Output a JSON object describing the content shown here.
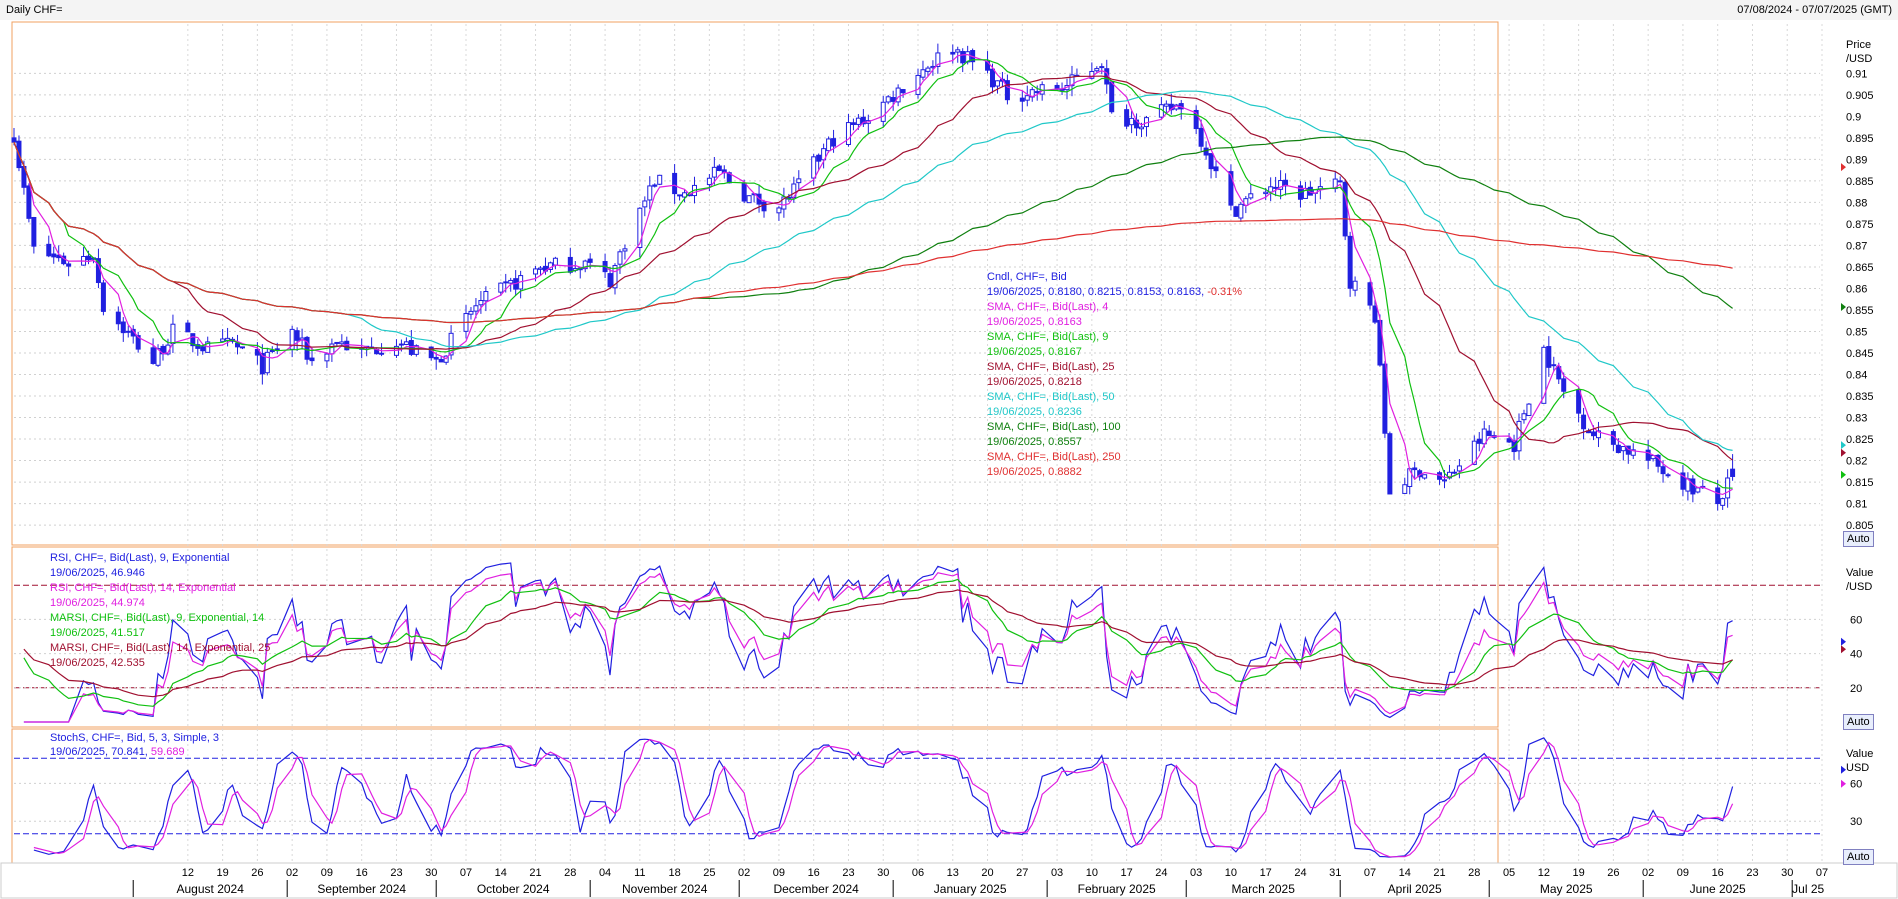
{
  "window": {
    "title": "Daily CHF=",
    "date_range": "07/08/2024 - 07/07/2025 (GMT)"
  },
  "colors": {
    "candle": "#2020e0",
    "sma4": "#e020e0",
    "sma9": "#10c010",
    "sma25": "#a01030",
    "sma50": "#20c8c8",
    "sma100": "#108010",
    "sma250": "#e03030",
    "rsi9": "#2020e0",
    "rsi14": "#e020e0",
    "marsi9": "#10c010",
    "marsi14": "#a01030",
    "stoch_k": "#2020e0",
    "stoch_d": "#e020e0"
  },
  "price_panel": {
    "axis_title_1": "Price",
    "axis_title_2": "/USD",
    "auto_button": "Auto",
    "ticks": [
      "0.91",
      "0.905",
      "0.9",
      "0.895",
      "0.89",
      "0.885",
      "0.88",
      "0.875",
      "0.87",
      "0.865",
      "0.86",
      "0.855",
      "0.85",
      "0.845",
      "0.84",
      "0.835",
      "0.83",
      "0.825",
      "0.82",
      "0.815",
      "0.81",
      "0.805"
    ],
    "legend": [
      {
        "text": "Cndl, CHF=, Bid",
        "color": "#2020e0"
      },
      {
        "text": "19/06/2025, 0.8180, 0.8215, 0.8153, 0.8163,",
        "suffix": " -0.31%",
        "color": "#2020e0",
        "suffix_color": "#e03030"
      },
      {
        "text": "SMA, CHF=, Bid(Last),  4",
        "color": "#e020e0"
      },
      {
        "text": "19/06/2025, 0.8163",
        "color": "#e020e0"
      },
      {
        "text": "SMA, CHF=, Bid(Last),  9",
        "color": "#10c010"
      },
      {
        "text": "19/06/2025, 0.8167",
        "color": "#10c010"
      },
      {
        "text": "SMA, CHF=, Bid(Last),  25",
        "color": "#a01030"
      },
      {
        "text": "19/06/2025, 0.8218",
        "color": "#a01030"
      },
      {
        "text": "SMA, CHF=, Bid(Last),  50",
        "color": "#20c8c8"
      },
      {
        "text": "19/06/2025, 0.8236",
        "color": "#20c8c8"
      },
      {
        "text": "SMA, CHF=, Bid(Last),  100",
        "color": "#108010"
      },
      {
        "text": "19/06/2025, 0.8557",
        "color": "#108010"
      },
      {
        "text": "SMA, CHF=, Bid(Last),  250",
        "color": "#e03030"
      },
      {
        "text": "19/06/2025, 0.8882",
        "color": "#e03030"
      }
    ]
  },
  "rsi_panel": {
    "axis_title_1": "Value",
    "axis_title_2": "/USD",
    "auto_button": "Auto",
    "ticks": [
      "60",
      "40",
      "20"
    ],
    "legend": [
      {
        "text": "RSI, CHF=, Bid(Last),  9, Exponential",
        "color": "#2020e0"
      },
      {
        "text": "19/06/2025, 46.946",
        "color": "#2020e0"
      },
      {
        "text": "RSI, CHF=, Bid(Last),  14, Exponential",
        "color": "#e020e0"
      },
      {
        "text": "19/06/2025, 44.974",
        "color": "#e020e0"
      },
      {
        "text": "MARSI, CHF=, Bid(Last),  9, Exponential, 14",
        "color": "#10c010"
      },
      {
        "text": "19/06/2025, 41.517",
        "color": "#10c010"
      },
      {
        "text": "MARSI, CHF=, Bid(Last),  14, Exponential, 25",
        "color": "#a01030"
      },
      {
        "text": "19/06/2025, 42.535",
        "color": "#a01030"
      }
    ]
  },
  "stoch_panel": {
    "axis_title_1": "Value",
    "axis_title_2": "USD",
    "auto_button": "Auto",
    "ticks": [
      "60",
      "30"
    ],
    "legend_line1": "StochS, CHF=, Bid,  5, 3, Simple, 3",
    "legend_date": "19/06/2025, 70.841,",
    "legend_v2": " 59.689"
  },
  "x_axis": {
    "day_ticks": [
      "12",
      "19",
      "26",
      "02",
      "09",
      "16",
      "23",
      "30",
      "07",
      "14",
      "21",
      "28",
      "04",
      "11",
      "18",
      "25",
      "02",
      "09",
      "16",
      "23",
      "30",
      "06",
      "13",
      "20",
      "27",
      "03",
      "10",
      "17",
      "24",
      "03",
      "10",
      "17",
      "24",
      "31",
      "07",
      "14",
      "21",
      "28",
      "05",
      "12",
      "19",
      "26",
      "02",
      "09",
      "16",
      "23",
      "30",
      "07"
    ],
    "months": [
      "August 2024",
      "September 2024",
      "October 2024",
      "November 2024",
      "December 2024",
      "January 2025",
      "February 2025",
      "March 2025",
      "April 2025",
      "May 2025",
      "June 2025",
      "Jul 25"
    ]
  },
  "chart_data": {
    "type": "candlestick",
    "instrument": "CHF=",
    "interval": "Daily",
    "price_ylim": [
      0.802,
      0.921
    ],
    "anchors_price_close": [
      [
        "2024-07-08",
        0.896
      ],
      [
        "2024-07-12",
        0.869
      ],
      [
        "2024-07-19",
        0.866
      ],
      [
        "2024-07-24",
        0.868
      ],
      [
        "2024-07-26",
        0.856
      ],
      [
        "2024-08-05",
        0.843
      ],
      [
        "2024-08-09",
        0.85
      ],
      [
        "2024-08-16",
        0.846
      ],
      [
        "2024-08-21",
        0.847
      ],
      [
        "2024-08-27",
        0.842
      ],
      [
        "2024-09-02",
        0.85
      ],
      [
        "2024-09-06",
        0.843
      ],
      [
        "2024-09-11",
        0.848
      ],
      [
        "2024-09-16",
        0.845
      ],
      [
        "2024-09-23",
        0.848
      ],
      [
        "2024-09-27",
        0.845
      ],
      [
        "2024-10-01",
        0.843
      ],
      [
        "2024-10-09",
        0.856
      ],
      [
        "2024-10-15",
        0.86
      ],
      [
        "2024-10-22",
        0.865
      ],
      [
        "2024-10-31",
        0.866
      ],
      [
        "2024-11-05",
        0.862
      ],
      [
        "2024-11-08",
        0.871
      ],
      [
        "2024-11-14",
        0.885
      ],
      [
        "2024-11-20",
        0.882
      ],
      [
        "2024-11-27",
        0.887
      ],
      [
        "2024-12-03",
        0.881
      ],
      [
        "2024-12-09",
        0.879
      ],
      [
        "2024-12-13",
        0.884
      ],
      [
        "2024-12-20",
        0.895
      ],
      [
        "2024-12-27",
        0.9
      ],
      [
        "2025-01-03",
        0.907
      ],
      [
        "2025-01-08",
        0.912
      ],
      [
        "2025-01-13",
        0.916
      ],
      [
        "2025-01-20",
        0.91
      ],
      [
        "2025-01-24",
        0.905
      ],
      [
        "2025-01-31",
        0.906
      ],
      [
        "2025-02-05",
        0.907
      ],
      [
        "2025-02-12",
        0.913
      ],
      [
        "2025-02-14",
        0.9
      ],
      [
        "2025-02-21",
        0.899
      ],
      [
        "2025-02-28",
        0.903
      ],
      [
        "2025-03-04",
        0.895
      ],
      [
        "2025-03-10",
        0.878
      ],
      [
        "2025-03-18",
        0.884
      ],
      [
        "2025-03-24",
        0.882
      ],
      [
        "2025-04-01",
        0.884
      ],
      [
        "2025-04-03",
        0.862
      ],
      [
        "2025-04-08",
        0.854
      ],
      [
        "2025-04-11",
        0.813
      ],
      [
        "2025-04-17",
        0.818
      ],
      [
        "2025-04-22",
        0.815
      ],
      [
        "2025-04-30",
        0.826
      ],
      [
        "2025-05-06",
        0.824
      ],
      [
        "2025-05-12",
        0.846
      ],
      [
        "2025-05-16",
        0.836
      ],
      [
        "2025-05-22",
        0.826
      ],
      [
        "2025-05-30",
        0.822
      ],
      [
        "2025-06-05",
        0.818
      ],
      [
        "2025-06-12",
        0.813
      ],
      [
        "2025-06-16",
        0.81
      ],
      [
        "2025-06-19",
        0.8163
      ]
    ],
    "last_bar": {
      "date": "19/06/2025",
      "open": 0.818,
      "high": 0.8215,
      "low": 0.8153,
      "close": 0.8163,
      "change_pct": -0.31
    },
    "sma_last": {
      "sma4": 0.8163,
      "sma9": 0.8167,
      "sma25": 0.8218,
      "sma50": 0.8236,
      "sma100": 0.8557,
      "sma250": 0.8882
    },
    "rsi_ylim": [
      0,
      100
    ],
    "rsi_levels": [
      80,
      20
    ],
    "rsi_last": {
      "rsi9": 46.946,
      "rsi14": 44.974,
      "marsi9": 41.517,
      "marsi14": 42.535
    },
    "stoch_ylim": [
      0,
      100
    ],
    "stoch_levels": [
      80,
      20
    ],
    "stoch_last": {
      "k": 70.841,
      "d": 59.689
    }
  }
}
